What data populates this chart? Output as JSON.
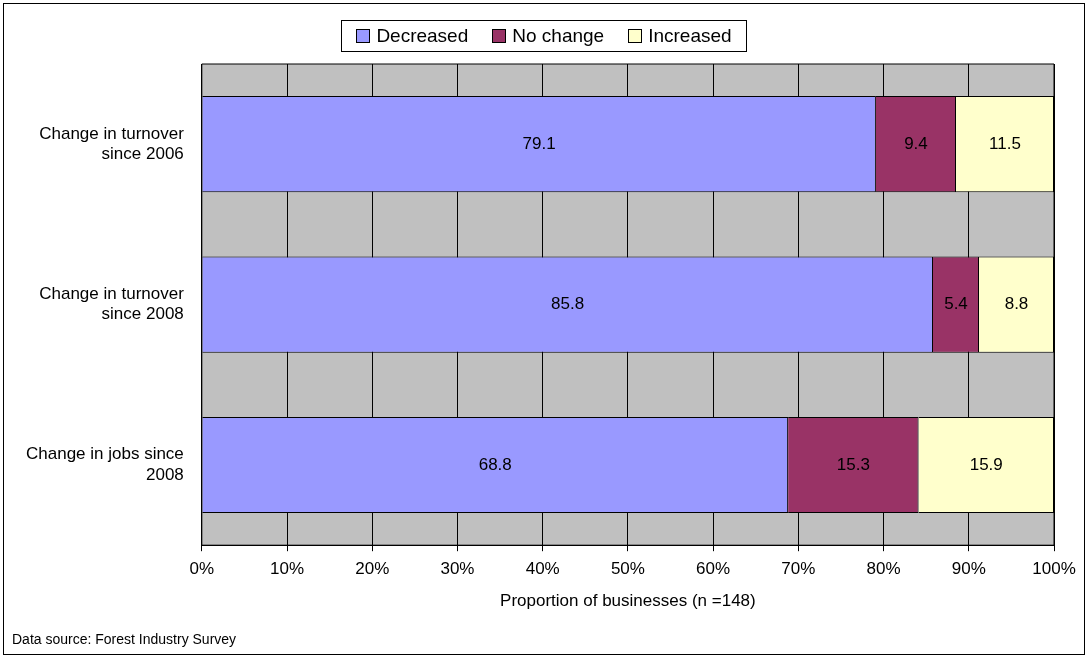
{
  "chart_data": {
    "type": "bar",
    "orientation": "horizontal",
    "stacked": true,
    "categories": [
      "Change in turnover since 2006",
      "Change in turnover since 2008",
      "Change in jobs since 2008"
    ],
    "series": [
      {
        "name": "Decreased",
        "color": "#9999ff",
        "values": [
          79.1,
          85.8,
          68.8
        ]
      },
      {
        "name": "No change",
        "color": "#993366",
        "values": [
          9.4,
          5.4,
          15.3
        ]
      },
      {
        "name": "Increased",
        "color": "#ffffcc",
        "values": [
          11.5,
          8.8,
          15.9
        ]
      }
    ],
    "xlim": [
      0,
      100
    ],
    "xticks": [
      {
        "value": 0,
        "label": "0%"
      },
      {
        "value": 10,
        "label": "10%"
      },
      {
        "value": 20,
        "label": "20%"
      },
      {
        "value": 30,
        "label": "30%"
      },
      {
        "value": 40,
        "label": "40%"
      },
      {
        "value": 50,
        "label": "50%"
      },
      {
        "value": 60,
        "label": "60%"
      },
      {
        "value": 70,
        "label": "70%"
      },
      {
        "value": 80,
        "label": "80%"
      },
      {
        "value": 90,
        "label": "90%"
      },
      {
        "value": 100,
        "label": "100%"
      }
    ],
    "xlabel": "Proportion of businesses (n =148)",
    "annotations": [
      "Data source: Forest Industry Survey"
    ],
    "data_labels": true,
    "grid": "x",
    "legend": "top"
  }
}
